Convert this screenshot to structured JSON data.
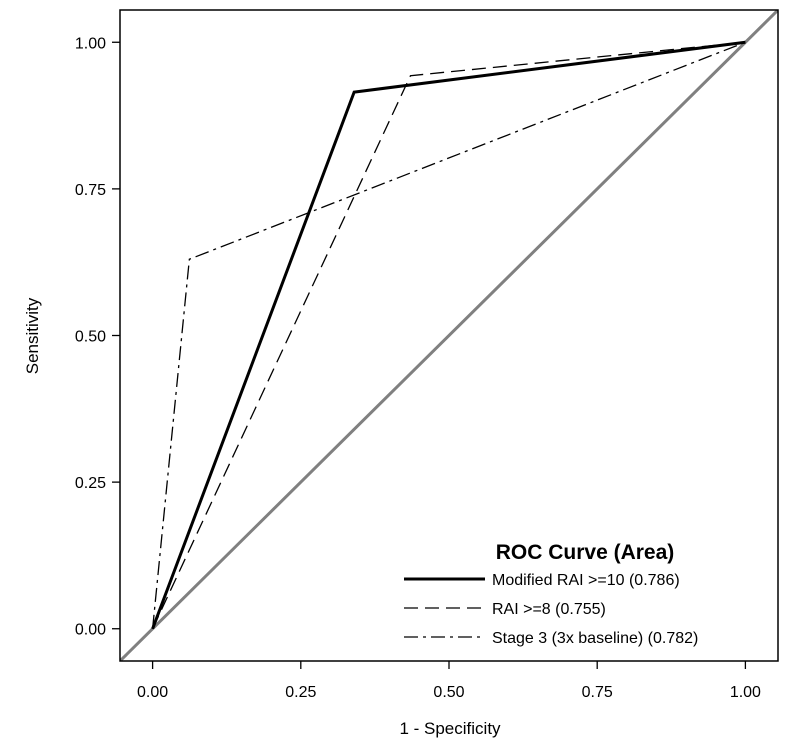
{
  "chart_data": {
    "type": "line",
    "xlabel": "1 - Specificity",
    "ylabel": "Sensitivity",
    "xlim": [
      -0.055,
      1.055
    ],
    "ylim": [
      -0.055,
      1.055
    ],
    "xticks": [
      0.0,
      0.25,
      0.5,
      0.75,
      1.0
    ],
    "yticks": [
      0.0,
      0.25,
      0.5,
      0.75,
      1.0
    ],
    "xtick_labels": [
      "0.00",
      "0.25",
      "0.50",
      "0.75",
      "1.00"
    ],
    "ytick_labels": [
      "0.00",
      "0.25",
      "0.50",
      "0.75",
      "1.00"
    ],
    "grid": false,
    "legend": {
      "title": "ROC Curve (Area)",
      "placement": "bottom-right"
    },
    "series": [
      {
        "name": "Modified RAI >=10 (0.786)",
        "style": "solid-thick",
        "color": "#000000",
        "x": [
          0.0,
          0.34,
          1.0
        ],
        "y": [
          0.0,
          0.915,
          1.0
        ]
      },
      {
        "name": "RAI >=8 (0.755)",
        "style": "dashed",
        "color": "#000000",
        "x": [
          0.0,
          0.435,
          1.0
        ],
        "y": [
          0.0,
          0.943,
          1.0
        ]
      },
      {
        "name": "Stage 3 (3x baseline) (0.782)",
        "style": "dash-dot",
        "color": "#000000",
        "x": [
          0.0,
          0.062,
          1.0
        ],
        "y": [
          0.0,
          0.63,
          1.0
        ]
      }
    ],
    "reference_line": {
      "x": [
        -0.055,
        1.055
      ],
      "y": [
        -0.055,
        1.055
      ],
      "color": "#808080"
    }
  }
}
